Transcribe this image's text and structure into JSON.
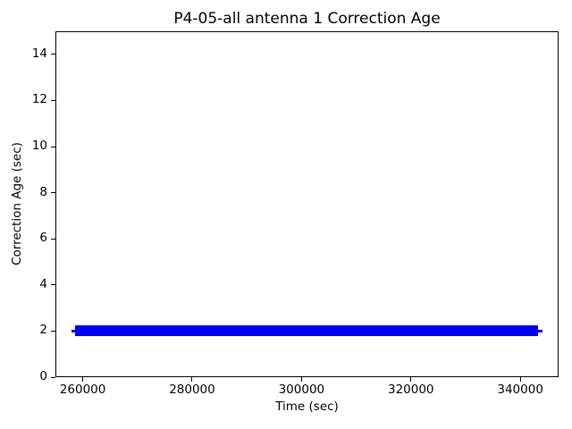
{
  "chart_data": {
    "type": "scatter",
    "title": "P4-05-all antenna 1 Correction Age",
    "xlabel": "Time (sec)",
    "ylabel": "Correction Age (sec)",
    "xlim": [
      255000,
      347000
    ],
    "ylim": [
      0,
      15
    ],
    "xticks": [
      260000,
      280000,
      300000,
      320000,
      340000
    ],
    "yticks": [
      0,
      2,
      4,
      6,
      8,
      10,
      12,
      14
    ],
    "grid": false,
    "legend": null,
    "series": [
      {
        "name": "correction-age",
        "color": "#0000ff",
        "marker": "+",
        "y_constant": 2,
        "x_first": 257900,
        "x_dense_start": 258600,
        "x_dense_end": 343200,
        "x_last": 344000,
        "note": "Densely sampled points all at Correction Age = 2 sec form a solid horizontal band from x_dense_start to x_dense_end; single isolated markers at x_first and x_last."
      }
    ]
  }
}
